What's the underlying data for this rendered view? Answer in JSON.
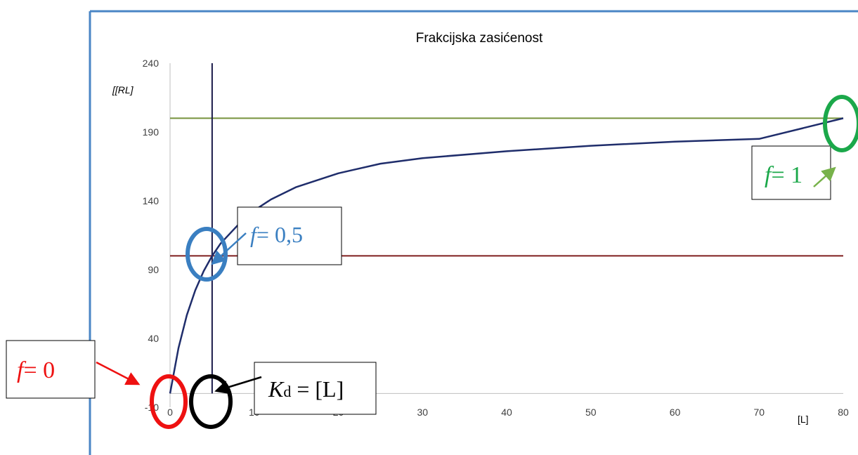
{
  "chart_data": {
    "type": "line",
    "title": "Frakcijska zasićenost",
    "xlabel": "[L]",
    "ylabel": "[RL]",
    "xlim": [
      0,
      80
    ],
    "ylim": [
      -10,
      240
    ],
    "y_ticks": [
      "-10",
      "40",
      "90",
      "140",
      "190",
      "240"
    ],
    "x_ticks": [
      "0",
      "10",
      "20",
      "30",
      "40",
      "50",
      "60",
      "70",
      "80"
    ],
    "grid": false,
    "series": [
      {
        "name": "",
        "color": "#1f2d6b",
        "x": [
          0,
          1,
          2,
          3,
          4,
          5,
          6,
          8,
          10,
          12,
          15,
          20,
          25,
          30,
          40,
          50,
          60,
          70,
          80
        ],
        "y": [
          0,
          33,
          57,
          75,
          89,
          100,
          109,
          122,
          133,
          141,
          150,
          160,
          167,
          171,
          176,
          180,
          183,
          185,
          200
        ]
      }
    ],
    "reference_lines": {
      "saturation_y": 200,
      "half_saturation_y": 100,
      "kd_x": 5
    },
    "annotations": {
      "f0": "= 0",
      "f05": "= 0,5",
      "f1": "= 1",
      "kd_sub": "d",
      "kd_rhs": "= [L]"
    }
  },
  "colors": {
    "frame": "#4a86c5",
    "axis": "#bfbfbf",
    "curve": "#1f2d6b",
    "saturation_line": "#76923c",
    "half_line": "#7f1f1f",
    "kd_line": "#1a1a4a",
    "red": "#ee1111",
    "black": "#000000",
    "blue": "#3a7fc1",
    "green": "#1ba84a",
    "green_arrow": "#77b24a"
  }
}
